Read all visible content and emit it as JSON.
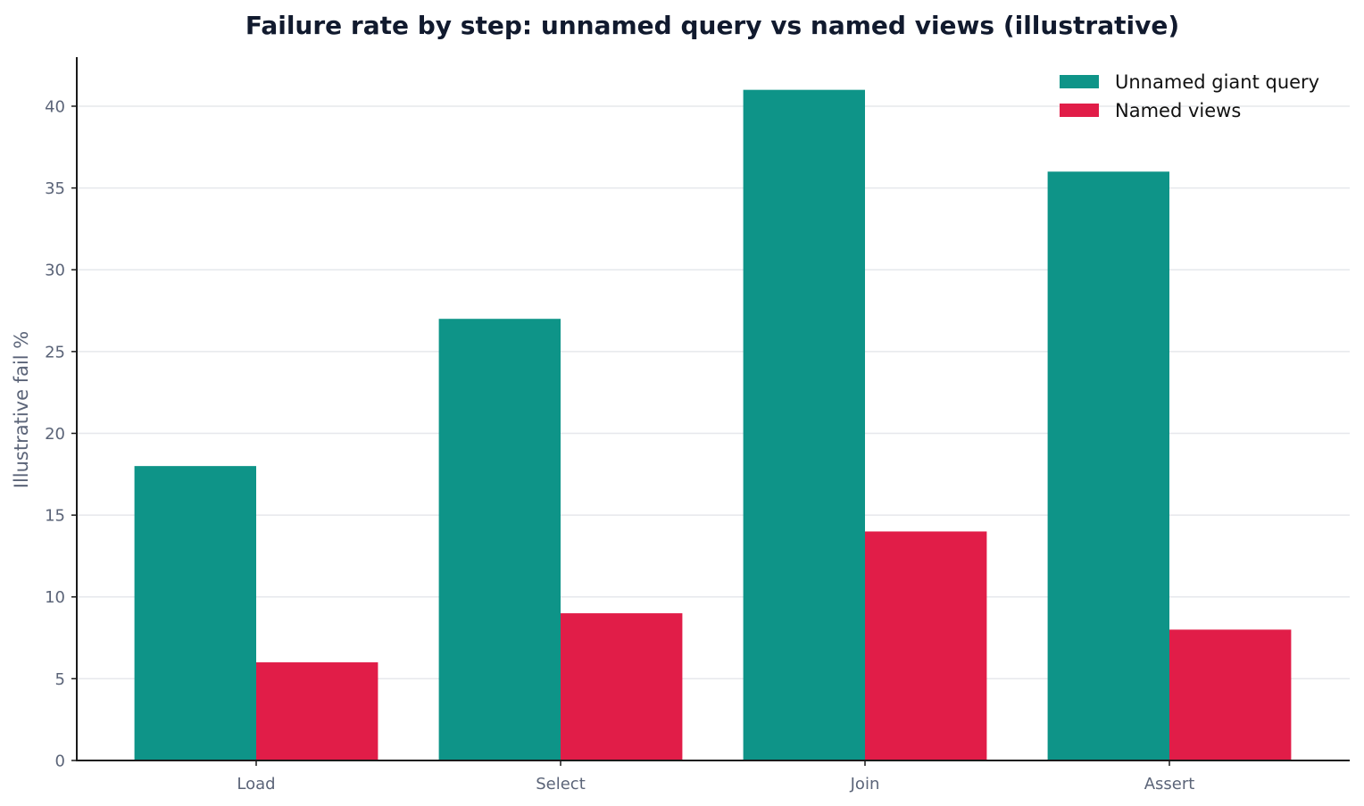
{
  "chart_data": {
    "type": "bar",
    "title": "Failure rate by step: unnamed query vs named views (illustrative)",
    "xlabel": "",
    "ylabel": "Illustrative fail %",
    "categories": [
      "Load",
      "Select",
      "Join",
      "Assert"
    ],
    "series": [
      {
        "name": "Unnamed giant query",
        "color": "#0e9488",
        "values": [
          18,
          27,
          41,
          36
        ]
      },
      {
        "name": "Named views",
        "color": "#e11d48",
        "values": [
          6,
          9,
          14,
          8
        ]
      }
    ],
    "ylim": [
      0,
      43
    ],
    "yticks": [
      0,
      5,
      10,
      15,
      20,
      25,
      30,
      35,
      40
    ],
    "grid": "horizontal",
    "legend": "top-right"
  }
}
